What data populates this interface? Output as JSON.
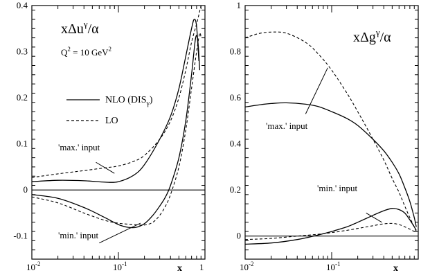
{
  "chart_data": [
    {
      "type": "line",
      "title_main": "xΔu",
      "title_sup": "γ",
      "title_tail": "/α",
      "q2_main": "Q",
      "q2_sup": "2",
      "q2_mid": " = 10 GeV",
      "q2_unit_sup": "2",
      "xlabel": "x",
      "x_scale": "log",
      "xlim": [
        0.01,
        1
      ],
      "ylim": [
        -0.15,
        0.4
      ],
      "x_ticks": [
        {
          "value": 0.01,
          "base": "10",
          "exp": "-2"
        },
        {
          "value": 0.1,
          "base": "10",
          "exp": "-1"
        },
        {
          "value": 1,
          "base": "1",
          "exp": ""
        }
      ],
      "y_ticks": [
        {
          "value": -0.1,
          "label": "-0.1"
        },
        {
          "value": 0,
          "label": "0"
        },
        {
          "value": 0.1,
          "label": "0.1"
        },
        {
          "value": 0.2,
          "label": "0.2"
        },
        {
          "value": 0.3,
          "label": "0.3"
        },
        {
          "value": 0.4,
          "label": "0.4"
        }
      ],
      "legend": [
        {
          "style": "solid",
          "label_main": "NLO (DIS",
          "label_sub": "γ",
          "label_tail": ")"
        },
        {
          "style": "dashed",
          "label_main": "LO",
          "label_sub": "",
          "label_tail": ""
        }
      ],
      "annotations": [
        {
          "text": "'max.' input",
          "at": [
            0.028,
            0.068
          ],
          "pointer_from": [
            0.055,
            0.06
          ],
          "pointer_to": [
            0.09,
            0.036
          ]
        },
        {
          "text": "'min.' input",
          "at": [
            0.028,
            -0.13
          ],
          "pointer_from": [
            0.06,
            -0.115
          ],
          "pointer_to": [
            0.18,
            -0.072
          ]
        }
      ],
      "series": [
        {
          "name": "NLO 'max.' input",
          "style": "solid",
          "x": [
            0.01,
            0.02,
            0.04,
            0.07,
            0.1,
            0.15,
            0.2,
            0.3,
            0.4,
            0.5,
            0.6,
            0.7,
            0.75,
            0.8,
            0.85
          ],
          "y": [
            0.018,
            0.021,
            0.02,
            0.017,
            0.018,
            0.032,
            0.055,
            0.11,
            0.16,
            0.22,
            0.29,
            0.35,
            0.37,
            0.355,
            0.28
          ]
        },
        {
          "name": "LO 'max.' input",
          "style": "dashed",
          "x": [
            0.01,
            0.02,
            0.04,
            0.07,
            0.1,
            0.15,
            0.2,
            0.3,
            0.4,
            0.5,
            0.6,
            0.7,
            0.8,
            0.85,
            0.9
          ],
          "y": [
            0.027,
            0.035,
            0.042,
            0.048,
            0.052,
            0.062,
            0.075,
            0.11,
            0.15,
            0.2,
            0.26,
            0.32,
            0.36,
            0.38,
            0.4
          ]
        },
        {
          "name": "NLO 'min.' input",
          "style": "solid",
          "x": [
            0.01,
            0.02,
            0.04,
            0.07,
            0.1,
            0.13,
            0.16,
            0.2,
            0.25,
            0.3,
            0.35,
            0.4,
            0.5,
            0.6,
            0.7,
            0.78,
            0.83,
            0.87
          ],
          "y": [
            -0.01,
            -0.018,
            -0.038,
            -0.06,
            -0.075,
            -0.081,
            -0.081,
            -0.073,
            -0.055,
            -0.035,
            -0.015,
            0.01,
            0.07,
            0.15,
            0.25,
            0.33,
            0.32,
            0.26
          ]
        },
        {
          "name": "LO 'min.' input",
          "style": "dashed",
          "x": [
            0.01,
            0.02,
            0.04,
            0.07,
            0.1,
            0.15,
            0.2,
            0.25,
            0.3,
            0.35,
            0.4,
            0.5,
            0.6,
            0.7,
            0.8,
            0.87,
            0.9
          ],
          "y": [
            -0.015,
            -0.028,
            -0.05,
            -0.066,
            -0.072,
            -0.075,
            -0.076,
            -0.07,
            -0.055,
            -0.035,
            -0.01,
            0.05,
            0.13,
            0.22,
            0.3,
            0.34,
            0.33
          ]
        }
      ]
    },
    {
      "type": "line",
      "title_main": "xΔg",
      "title_sup": "γ",
      "title_tail": "/α",
      "xlabel": "x",
      "x_scale": "log",
      "xlim": [
        0.01,
        1
      ],
      "ylim": [
        -0.1,
        1.0
      ],
      "x_ticks": [
        {
          "value": 0.01,
          "base": "10",
          "exp": "-2"
        },
        {
          "value": 0.1,
          "base": "10",
          "exp": "-1"
        }
      ],
      "y_ticks": [
        {
          "value": 0,
          "label": "0"
        },
        {
          "value": 0.2,
          "label": "0.2"
        },
        {
          "value": 0.4,
          "label": "0.4"
        },
        {
          "value": 0.6,
          "label": "0.6"
        },
        {
          "value": 0.8,
          "label": "0.8"
        },
        {
          "value": 1.0,
          "label": "1"
        }
      ],
      "annotations": [
        {
          "text": "'max.' input",
          "at": [
            0.045,
            0.47
          ],
          "pointer_from": [
            0.05,
            0.53
          ],
          "pointer_to": [
            0.09,
            0.73
          ]
        },
        {
          "text": "'min.' input",
          "at": [
            0.12,
            0.16
          ],
          "pointer_from": [
            0.25,
            0.1
          ],
          "pointer_to": [
            0.38,
            0.06
          ]
        }
      ],
      "series": [
        {
          "name": "NLO 'max.' input",
          "style": "solid",
          "x": [
            0.01,
            0.015,
            0.02,
            0.03,
            0.05,
            0.07,
            0.1,
            0.15,
            0.2,
            0.3,
            0.4,
            0.5,
            0.6,
            0.7,
            0.8,
            0.9,
            0.95
          ],
          "y": [
            0.56,
            0.57,
            0.575,
            0.578,
            0.572,
            0.562,
            0.54,
            0.51,
            0.48,
            0.42,
            0.37,
            0.32,
            0.27,
            0.21,
            0.15,
            0.08,
            0.04
          ]
        },
        {
          "name": "LO 'max.' input",
          "style": "dashed",
          "x": [
            0.01,
            0.012,
            0.015,
            0.02,
            0.03,
            0.05,
            0.07,
            0.1,
            0.15,
            0.2,
            0.3,
            0.4,
            0.5,
            0.6,
            0.7,
            0.8,
            0.9,
            0.95
          ],
          "y": [
            0.86,
            0.87,
            0.88,
            0.885,
            0.88,
            0.84,
            0.79,
            0.72,
            0.62,
            0.54,
            0.42,
            0.33,
            0.25,
            0.19,
            0.13,
            0.08,
            0.04,
            0.02
          ]
        },
        {
          "name": "NLO 'min.' input",
          "style": "solid",
          "x": [
            0.01,
            0.02,
            0.04,
            0.07,
            0.1,
            0.15,
            0.2,
            0.3,
            0.4,
            0.5,
            0.6,
            0.7,
            0.8,
            0.9,
            0.95
          ],
          "y": [
            -0.035,
            -0.03,
            -0.015,
            0.005,
            0.02,
            0.04,
            0.06,
            0.09,
            0.11,
            0.12,
            0.115,
            0.1,
            0.07,
            0.04,
            0.025
          ]
        },
        {
          "name": "LO 'min.' input",
          "style": "dashed",
          "x": [
            0.01,
            0.02,
            0.04,
            0.07,
            0.1,
            0.15,
            0.2,
            0.3,
            0.4,
            0.5,
            0.6,
            0.7,
            0.8,
            0.9,
            0.95
          ],
          "y": [
            -0.015,
            -0.01,
            0.0,
            0.008,
            0.015,
            0.025,
            0.033,
            0.045,
            0.053,
            0.055,
            0.05,
            0.04,
            0.03,
            0.02,
            0.015
          ]
        }
      ]
    }
  ]
}
